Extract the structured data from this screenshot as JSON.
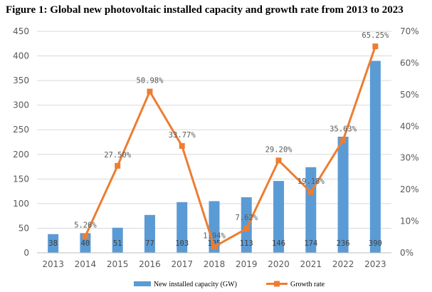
{
  "chart_data": {
    "type": "bar",
    "title": "Figure 1: Global new photovoltaic installed capacity and growth rate from 2013 to 2023",
    "categories": [
      "2013",
      "2014",
      "2015",
      "2016",
      "2017",
      "2018",
      "2019",
      "2020",
      "2021",
      "2022",
      "2023"
    ],
    "series": [
      {
        "name": "New installed capacity (GW)",
        "type": "bar",
        "axis": "left",
        "color": "#5B9BD5",
        "values": [
          38,
          40,
          51,
          77,
          103,
          105,
          113,
          146,
          174,
          236,
          390
        ],
        "labels": [
          "38",
          "40",
          "51",
          "77",
          "103",
          "105",
          "113",
          "146",
          "174",
          "236",
          "390"
        ]
      },
      {
        "name": "Growth rate",
        "type": "line",
        "axis": "right",
        "color": "#ED7D31",
        "values": [
          null,
          5.26,
          27.5,
          50.98,
          33.77,
          1.94,
          7.62,
          29.2,
          19.18,
          35.63,
          65.25
        ],
        "labels": [
          "",
          "5.26%",
          "27.50%",
          "50.98%",
          "33.77%",
          "1.94%",
          "7.62%",
          "29.20%",
          "19.18%",
          "35.63%",
          "65.25%"
        ]
      }
    ],
    "y_left": {
      "min": 0,
      "max": 450,
      "ticks": [
        "0",
        "50",
        "100",
        "150",
        "200",
        "250",
        "300",
        "350",
        "400",
        "450"
      ]
    },
    "y_right": {
      "min": 0,
      "max": 70,
      "ticks": [
        "0%",
        "10%",
        "20%",
        "30%",
        "40%",
        "50%",
        "60%",
        "70%"
      ]
    },
    "xlabel": "",
    "ylabel": "",
    "grid": true,
    "legend": "bottom"
  }
}
